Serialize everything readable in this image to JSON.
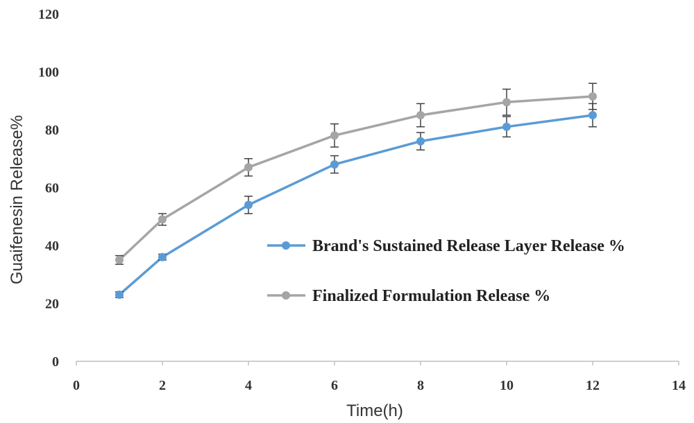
{
  "chart_data": {
    "type": "line",
    "title": "",
    "xlabel": "Time(h)",
    "ylabel": "Guaifenesin  Release%",
    "xlim": [
      0,
      14
    ],
    "ylim": [
      0,
      120
    ],
    "xticks": [
      "0",
      "2",
      "4",
      "6",
      "8",
      "10",
      "12",
      "14"
    ],
    "yticks": [
      "0",
      "20",
      "40",
      "60",
      "80",
      "100",
      "120"
    ],
    "grid": false,
    "legend_position": "right",
    "x": [
      1,
      2,
      4,
      6,
      8,
      10,
      12
    ],
    "series": [
      {
        "name": "Brand's Sustained Release Layer Release %",
        "color": "#5b9bd5",
        "values": [
          23,
          36,
          54,
          68,
          76,
          81,
          85
        ],
        "errors": [
          1,
          1,
          3,
          3,
          3,
          3.5,
          4
        ]
      },
      {
        "name": "Finalized Formulation Release %",
        "color": "#a5a5a5",
        "values": [
          35,
          49,
          67,
          78,
          85,
          89.5,
          91.5
        ],
        "errors": [
          1.5,
          2,
          3,
          4,
          4,
          4.5,
          4.5
        ]
      }
    ]
  }
}
